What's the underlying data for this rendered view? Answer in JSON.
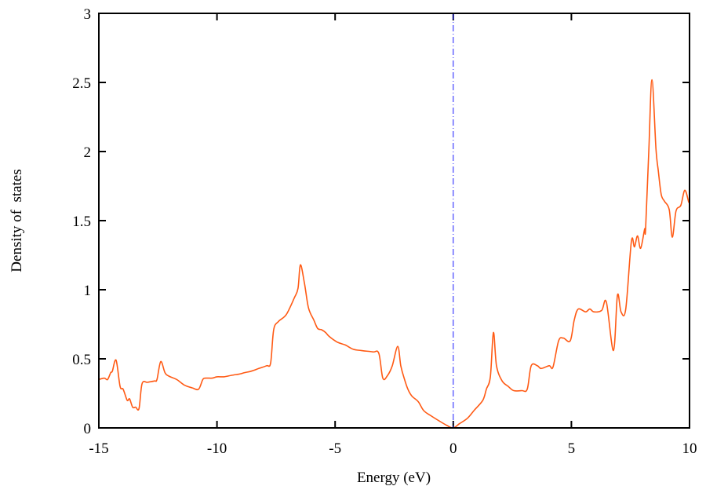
{
  "chart_data": {
    "type": "line",
    "title": "",
    "xlabel": "Energy (eV)",
    "ylabel": "Density of  states",
    "xlim": [
      -15,
      10
    ],
    "ylim": [
      0,
      3
    ],
    "xticks": [
      -15,
      -10,
      -5,
      0,
      5,
      10
    ],
    "yticks": [
      0,
      0.5,
      1,
      1.5,
      2,
      2.5,
      3
    ],
    "xtick_labels": [
      "-15",
      "-10",
      "-5",
      "0",
      "5",
      "10"
    ],
    "ytick_labels": [
      "0",
      "0.5",
      "1",
      "1.5",
      "2",
      "2.5",
      "3"
    ],
    "grid": false,
    "legend": "none",
    "fermi_level_line": {
      "x": 0,
      "style": "dash-dot",
      "color": "#1a1aff"
    },
    "series": [
      {
        "color": "#ff5a14",
        "x": [
          -15,
          -14.77,
          -14.63,
          -14.5,
          -14.43,
          -14.27,
          -14.1,
          -13.97,
          -13.8,
          -13.7,
          -13.57,
          -13.44,
          -13.3,
          -13.17,
          -12.94,
          -12.64,
          -12.54,
          -12.38,
          -12.2,
          -12.04,
          -11.7,
          -11.38,
          -11.05,
          -10.78,
          -10.6,
          -10.48,
          -10.2,
          -10.0,
          -9.7,
          -9.4,
          -9.05,
          -8.83,
          -8.56,
          -8.23,
          -7.9,
          -7.73,
          -7.6,
          -7.4,
          -7.07,
          -6.73,
          -6.57,
          -6.47,
          -6.3,
          -6.13,
          -5.9,
          -5.74,
          -5.57,
          -5.4,
          -5.24,
          -4.9,
          -4.57,
          -4.24,
          -3.9,
          -3.4,
          -3.15,
          -2.98,
          -2.78,
          -2.58,
          -2.35,
          -2.22,
          -2.08,
          -1.92,
          -1.75,
          -1.48,
          -1.25,
          -0.92,
          -0.59,
          -0.26,
          0,
          0.26,
          0.6,
          0.9,
          1.25,
          1.4,
          1.57,
          1.7,
          1.83,
          2.07,
          2.33,
          2.56,
          2.9,
          3.13,
          3.3,
          3.56,
          3.72,
          4.06,
          4.22,
          4.46,
          4.66,
          4.95,
          5.12,
          5.29,
          5.6,
          5.78,
          5.95,
          6.28,
          6.48,
          6.78,
          6.95,
          7.1,
          7.3,
          7.54,
          7.67,
          7.8,
          7.93,
          8.1,
          8.14,
          8.28,
          8.41,
          8.58,
          8.68,
          8.8,
          8.94,
          9.14,
          9.27,
          9.43,
          9.63,
          9.8,
          9.97
        ],
        "y": [
          0.35,
          0.36,
          0.35,
          0.4,
          0.41,
          0.49,
          0.3,
          0.28,
          0.2,
          0.21,
          0.15,
          0.15,
          0.14,
          0.32,
          0.33,
          0.34,
          0.35,
          0.48,
          0.4,
          0.375,
          0.35,
          0.31,
          0.29,
          0.28,
          0.35,
          0.36,
          0.36,
          0.37,
          0.37,
          0.38,
          0.39,
          0.4,
          0.41,
          0.43,
          0.45,
          0.47,
          0.71,
          0.77,
          0.82,
          0.94,
          1.01,
          1.18,
          1.05,
          0.87,
          0.78,
          0.72,
          0.71,
          0.69,
          0.66,
          0.62,
          0.6,
          0.57,
          0.56,
          0.55,
          0.54,
          0.36,
          0.38,
          0.45,
          0.59,
          0.45,
          0.36,
          0.28,
          0.23,
          0.19,
          0.125,
          0.085,
          0.05,
          0.017,
          0.0,
          0.03,
          0.07,
          0.13,
          0.2,
          0.28,
          0.37,
          0.69,
          0.45,
          0.34,
          0.3,
          0.27,
          0.27,
          0.28,
          0.45,
          0.45,
          0.43,
          0.45,
          0.44,
          0.63,
          0.65,
          0.63,
          0.78,
          0.86,
          0.84,
          0.86,
          0.84,
          0.85,
          0.91,
          0.56,
          0.96,
          0.84,
          0.86,
          1.35,
          1.31,
          1.39,
          1.3,
          1.44,
          1.44,
          2.02,
          2.52,
          2.02,
          1.86,
          1.69,
          1.64,
          1.58,
          1.38,
          1.57,
          1.61,
          1.72,
          1.63
        ]
      }
    ]
  }
}
